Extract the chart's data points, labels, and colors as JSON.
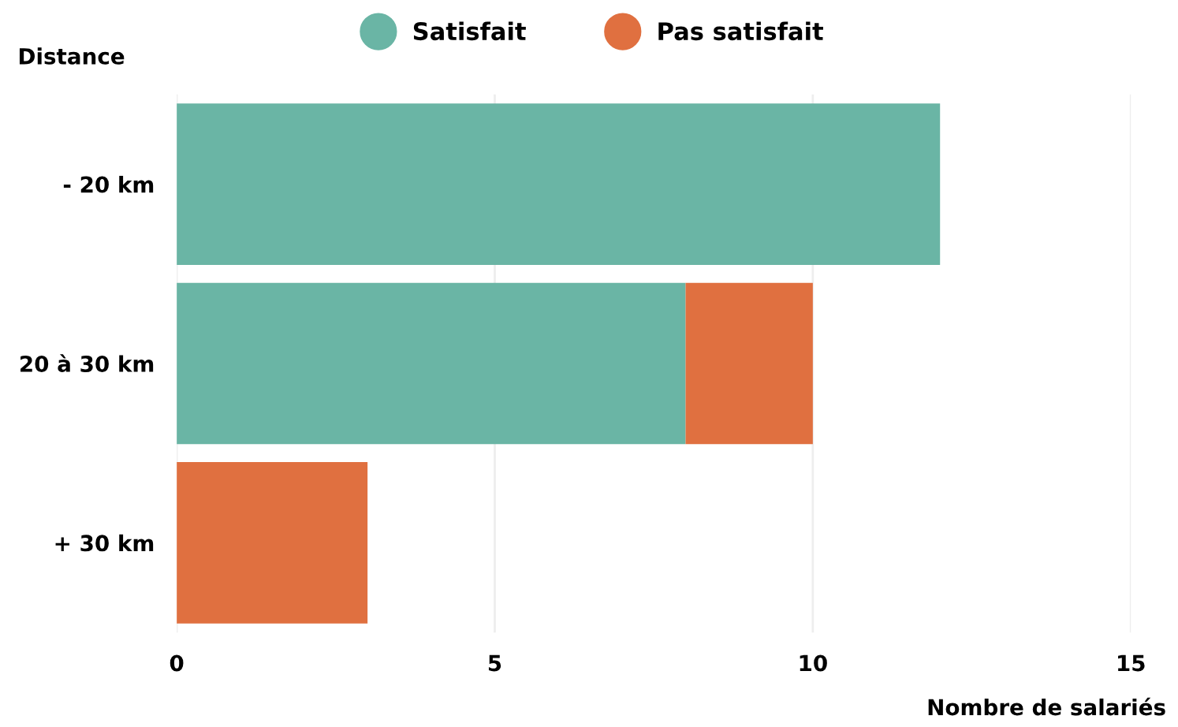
{
  "chart_data": {
    "type": "bar",
    "orientation": "horizontal",
    "stacked": true,
    "categories": [
      "- 20 km",
      "20 à 30 km",
      "+ 30 km"
    ],
    "series": [
      {
        "name": "Satisfait",
        "color": "#6ab5a5",
        "values": [
          12,
          8,
          0
        ]
      },
      {
        "name": "Pas satisfait",
        "color": "#e07040",
        "values": [
          0,
          2,
          3
        ]
      }
    ],
    "xlabel": "Nombre de salariés",
    "ylabel": "Distance",
    "xlim": [
      0,
      15
    ],
    "xticks": [
      0,
      5,
      10,
      15
    ],
    "grid": "x",
    "legend": "top"
  }
}
